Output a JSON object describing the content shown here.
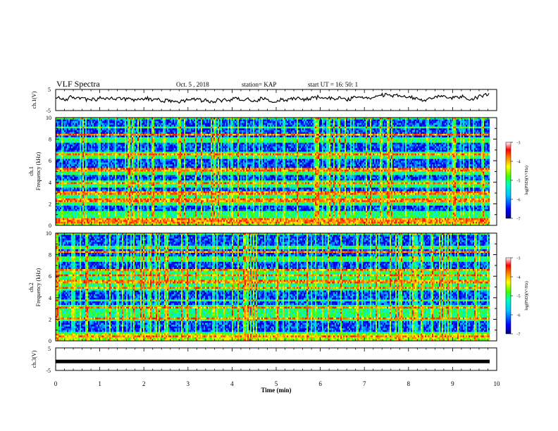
{
  "header": {
    "title": "VLF Spectra",
    "date": "Oct. 5  , 2018",
    "station": "station= KAP",
    "start": "start  UT  =   16: 50: 1"
  },
  "chart_data": {
    "type": "heatmap",
    "x": {
      "label": "Time  (min)",
      "range": [
        0,
        10
      ],
      "ticks": [
        "0",
        "1",
        "2",
        "3",
        "4",
        "5",
        "6",
        "7",
        "8",
        "9",
        "10"
      ],
      "data_end": 9.84
    },
    "panels": [
      {
        "id": "ch1v",
        "type": "line",
        "ylabel": "ch.1(V)",
        "ylim": [
          -5,
          5
        ],
        "yticks": [
          "5",
          "-5"
        ],
        "approx_level": 0.6,
        "approx_noise": 1.6
      },
      {
        "id": "spec1",
        "type": "heatmap",
        "ylabel_line1": "ch.1",
        "ylabel_line2": "Frequency  (kHz)",
        "ylim": [
          0,
          10
        ],
        "yticks": [
          "0",
          "2",
          "4",
          "6",
          "8",
          "10"
        ],
        "colorbar": {
          "label": "log(PSD)(V²/Hz)",
          "ticks": [
            "-3",
            "-4",
            "-5",
            "-6",
            "-7"
          ],
          "range": [
            -7,
            -3
          ]
        },
        "dark_bands_khz": [
          [
            1.3,
            1.9
          ],
          [
            3.15,
            3.5
          ],
          [
            4.1,
            4.6
          ],
          [
            5.4,
            6.1
          ],
          [
            6.9,
            7.6
          ],
          [
            8.2,
            9.0
          ],
          [
            9.2,
            9.9
          ]
        ],
        "bright_lines_khz": [
          0.3,
          0.5,
          2.2,
          2.4,
          3.0,
          3.9,
          5.1,
          5.2,
          6.6,
          8.4
        ]
      },
      {
        "id": "spec2",
        "type": "heatmap",
        "ylabel_line1": "ch.2",
        "ylabel_line2": "Frequency  (kHz)",
        "ylim": [
          0,
          10
        ],
        "yticks": [
          "0",
          "2",
          "4",
          "6",
          "8",
          "10"
        ],
        "colorbar": {
          "label": "log(PSD)(V²/Hz)",
          "ticks": [
            "-3",
            "-4",
            "-5",
            "-6",
            "-7"
          ],
          "range": [
            -7,
            -3
          ]
        },
        "dark_bands_khz": [
          [
            0.9,
            1.8
          ],
          [
            3.3,
            3.7
          ],
          [
            3.9,
            4.6
          ],
          [
            6.7,
            7.4
          ],
          [
            7.8,
            8.5
          ],
          [
            8.8,
            9.9
          ]
        ],
        "bright_lines_khz": [
          0.4,
          2.1,
          3.1,
          4.9,
          5.4,
          5.5,
          6.1,
          6.6,
          8.2
        ]
      },
      {
        "id": "ch3v",
        "type": "line",
        "ylabel": "ch.3(V)",
        "ylim": [
          -5,
          5
        ],
        "yticks": [
          "5",
          "-5"
        ],
        "approx_level": -1.0,
        "approx_noise": 0.0
      }
    ]
  },
  "colors": {
    "axis": "#000000",
    "trace": "#000000",
    "colormap": [
      "#00007f",
      "#0000ff",
      "#00bfff",
      "#00ffbf",
      "#40ff00",
      "#ffff00",
      "#ff8000",
      "#ff0000",
      "#ffffff"
    ]
  }
}
